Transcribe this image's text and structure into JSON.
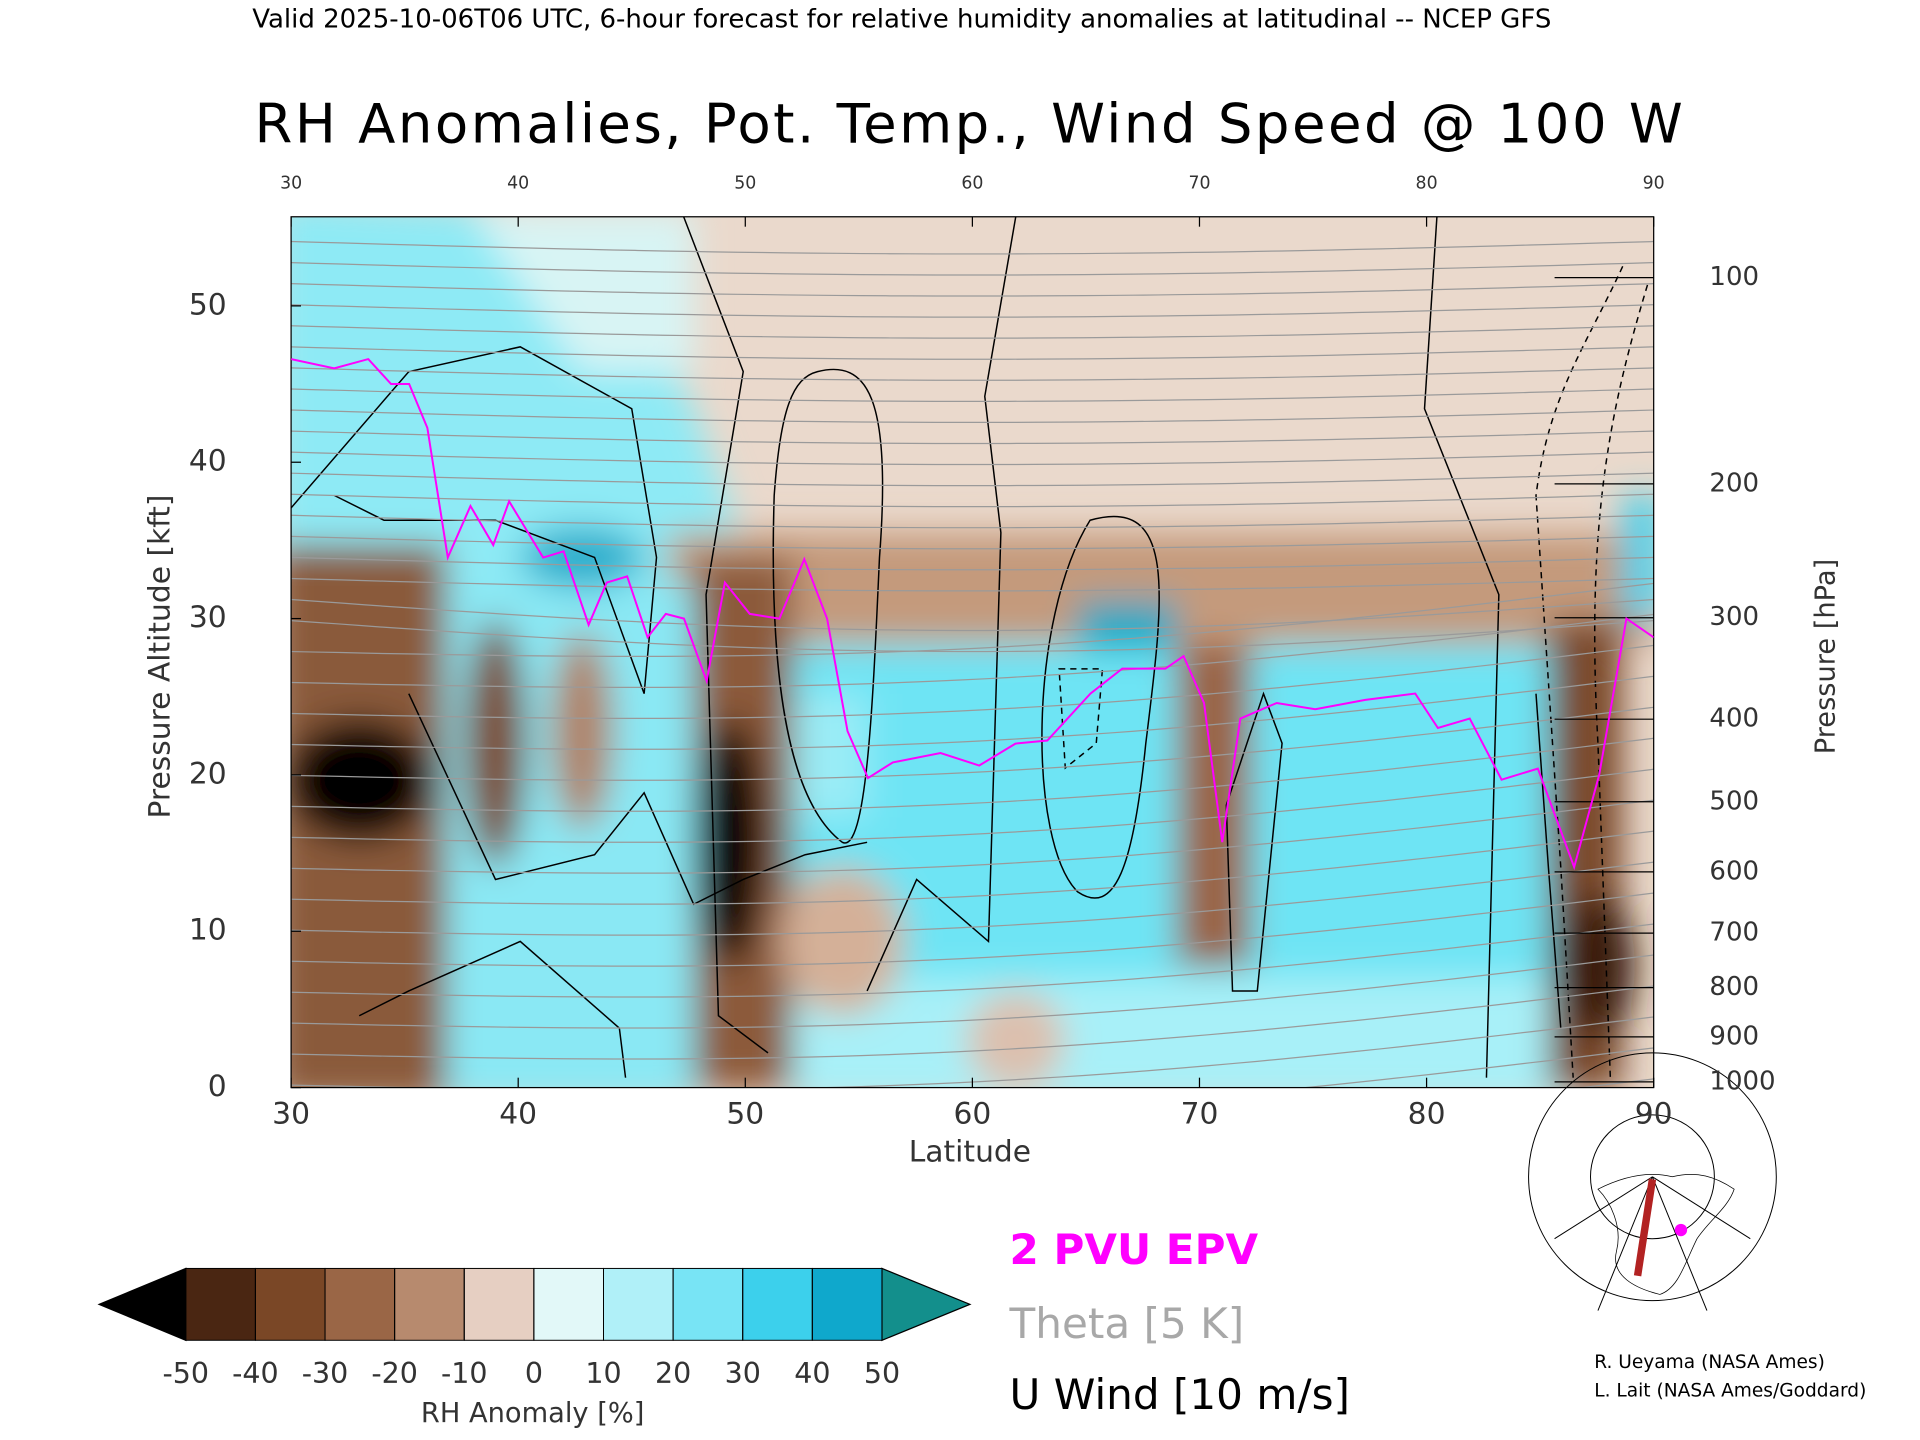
{
  "header": "Valid 2025-10-06T06 UTC, 6-hour forecast for relative humidity anomalies at latitudinal -- NCEP GFS",
  "chart_data": {
    "type": "heatmap",
    "title": "RH Anomalies, Pot. Temp., Wind Speed @ 100 W",
    "xlabel": "Latitude",
    "ylabel": "Pressure Altitude [kft]",
    "y2label": "Pressure [hPa]",
    "xlim": [
      30,
      90
    ],
    "xticks": [
      30,
      40,
      50,
      60,
      70,
      80,
      90
    ],
    "ylim": [
      0,
      55.7
    ],
    "yticks": [
      0,
      10,
      20,
      30,
      40,
      50
    ],
    "y2ticks": [
      100,
      200,
      300,
      400,
      500,
      600,
      700,
      800,
      900,
      1000
    ],
    "series": [
      {
        "name": "2 PVU EPV",
        "color": "#ff00ff",
        "x": [
          30,
          31.9,
          33.4,
          34.4,
          35.2,
          36.0,
          36.9,
          37.9,
          38.9,
          39.6,
          41.1,
          42.0,
          43.1,
          43.9,
          44.8,
          45.7,
          46.5,
          47.3,
          48.3,
          49.1,
          50.2,
          51.5,
          52.6,
          53.6,
          54.5,
          55.4,
          56.5,
          58.6,
          60.3,
          61.9,
          63.3,
          65.2,
          66.6,
          68.5,
          69.3,
          70.2,
          71.0,
          71.8,
          73.4,
          75.1,
          77.3,
          79.5,
          80.5,
          81.9,
          83.3,
          84.9,
          86.5,
          87.6,
          88.8,
          90
        ],
        "values": [
          46.6,
          46.0,
          46.6,
          45.0,
          45.0,
          42.2,
          33.9,
          37.2,
          34.7,
          37.5,
          33.9,
          34.3,
          29.6,
          32.3,
          32.7,
          28.8,
          30.3,
          30.0,
          26.0,
          32.3,
          30.3,
          30.0,
          33.8,
          30.0,
          22.8,
          19.8,
          20.8,
          21.4,
          20.6,
          22.0,
          22.2,
          25.2,
          26.8,
          26.8,
          27.6,
          24.6,
          15.7,
          23.6,
          24.6,
          24.2,
          24.8,
          25.2,
          23.0,
          23.6,
          19.7,
          20.4,
          14.1,
          20.0,
          30.0,
          28.8
        ]
      }
    ],
    "legend_entries": [
      {
        "name": "Theta [5 K]",
        "color": "#a8a8a8"
      },
      {
        "name": "U Wind [10 m/s]",
        "color": "#000000"
      }
    ],
    "colorbar": {
      "label": "RH Anomaly [%]",
      "ticks": [
        -50,
        -40,
        -30,
        -20,
        -10,
        0,
        10,
        20,
        30,
        40,
        50
      ],
      "colors": [
        "#4a2612",
        "#7a4726",
        "#9a6646",
        "#b78a6e",
        "#e6cfc2",
        "#e2f8f8",
        "#b0f0f8",
        "#78e4f5",
        "#3cd0ec",
        "#0fa8cc"
      ],
      "under_color": "#000000",
      "over_color": "#138f8c"
    }
  },
  "credits": [
    "R. Ueyama (NASA Ames)",
    "L. Lait (NASA Ames/Goddard)"
  ]
}
